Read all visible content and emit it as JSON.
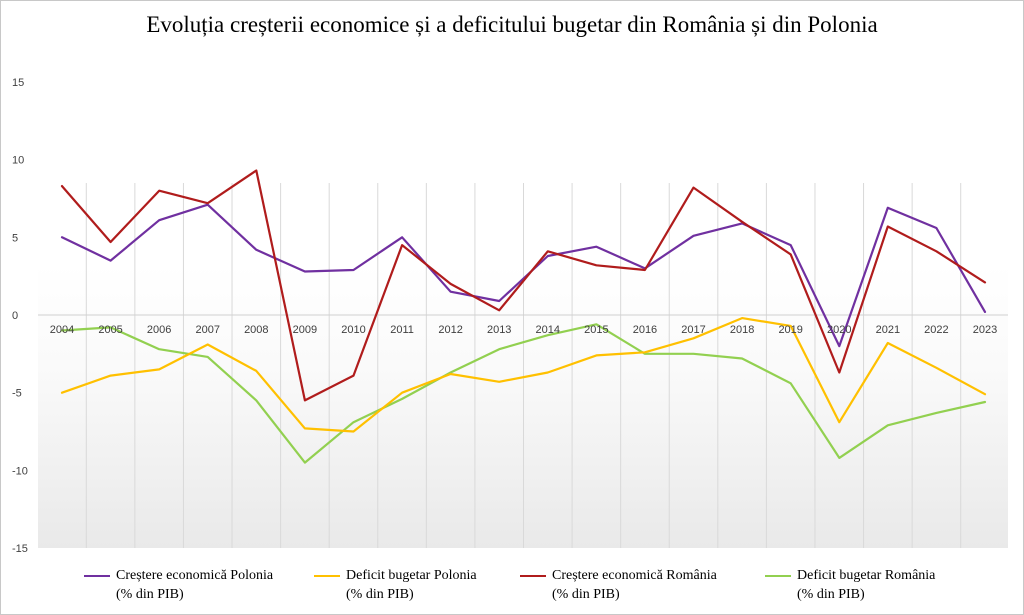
{
  "chart_data": {
    "type": "line",
    "title": "Evoluția creșterii economice și a deficitului  bugetar din România și din Polonia",
    "categories": [
      "2004",
      "2005",
      "2006",
      "2007",
      "2008",
      "2009",
      "2010",
      "2011",
      "2012",
      "2013",
      "2014",
      "2015",
      "2016",
      "2017",
      "2018",
      "2019",
      "2020",
      "2021",
      "2022",
      "2023"
    ],
    "ylim": [
      -15,
      15
    ],
    "yticks": [
      "15",
      "10",
      "5",
      "0",
      "-5",
      "-10",
      "-15"
    ],
    "ytick_values": [
      15,
      10,
      5,
      0,
      -5,
      -10,
      -15
    ],
    "grid": "vertical",
    "legend_position": "bottom",
    "series": [
      {
        "name_line1": "Creștere economică  Polonia",
        "name_line2": "(% din PIB)",
        "color": "#7030a0",
        "values": [
          5.0,
          3.5,
          6.1,
          7.1,
          4.2,
          2.8,
          2.9,
          5.0,
          1.5,
          0.9,
          3.8,
          4.4,
          3.0,
          5.1,
          5.9,
          4.5,
          -2.0,
          6.9,
          5.6,
          0.2
        ]
      },
      {
        "name_line1": "Deficit bugetar Polonia",
        "name_line2": "(% din PIB)",
        "color": "#ffc000",
        "values": [
          -5.0,
          -3.9,
          -3.5,
          -1.9,
          -3.6,
          -7.3,
          -7.5,
          -5.0,
          -3.8,
          -4.3,
          -3.7,
          -2.6,
          -2.4,
          -1.5,
          -0.2,
          -0.7,
          -6.9,
          -1.8,
          -3.4,
          -5.1
        ]
      },
      {
        "name_line1": "Creștere economică  România",
        "name_line2": "(% din PIB)",
        "color": "#b01c1c",
        "values": [
          8.3,
          4.7,
          8.0,
          7.2,
          9.3,
          -5.5,
          -3.9,
          4.5,
          2.0,
          0.3,
          4.1,
          3.2,
          2.9,
          8.2,
          6.0,
          3.9,
          -3.7,
          5.7,
          4.1,
          2.1
        ]
      },
      {
        "name_line1": "Deficit bugetar România",
        "name_line2": "(% din PIB)",
        "color": "#92d050",
        "values": [
          -1.0,
          -0.8,
          -2.2,
          -2.7,
          -5.5,
          -9.5,
          -6.9,
          -5.4,
          -3.7,
          -2.2,
          -1.3,
          -0.6,
          -2.5,
          -2.5,
          -2.8,
          -4.4,
          -9.2,
          -7.1,
          -6.3,
          -5.6
        ]
      }
    ]
  }
}
